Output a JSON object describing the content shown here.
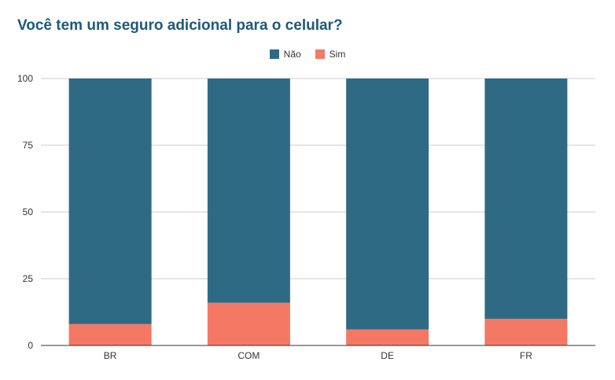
{
  "chart_data": {
    "type": "bar",
    "stacked": true,
    "title": "Você tem um seguro adicional para o celular?",
    "xlabel": "",
    "ylabel": "",
    "categories": [
      "BR",
      "COM",
      "DE",
      "FR"
    ],
    "series": [
      {
        "name": "Sim",
        "values": [
          8,
          16,
          6,
          10
        ],
        "color": "#f47864"
      },
      {
        "name": "Não",
        "values": [
          92,
          84,
          94,
          90
        ],
        "color": "#2f6a85"
      }
    ],
    "legend_order": [
      "Não",
      "Sim"
    ],
    "legend_position": "top",
    "ylim": [
      0,
      100
    ],
    "yticks": [
      0,
      25,
      50,
      75,
      100
    ],
    "grid": true
  }
}
